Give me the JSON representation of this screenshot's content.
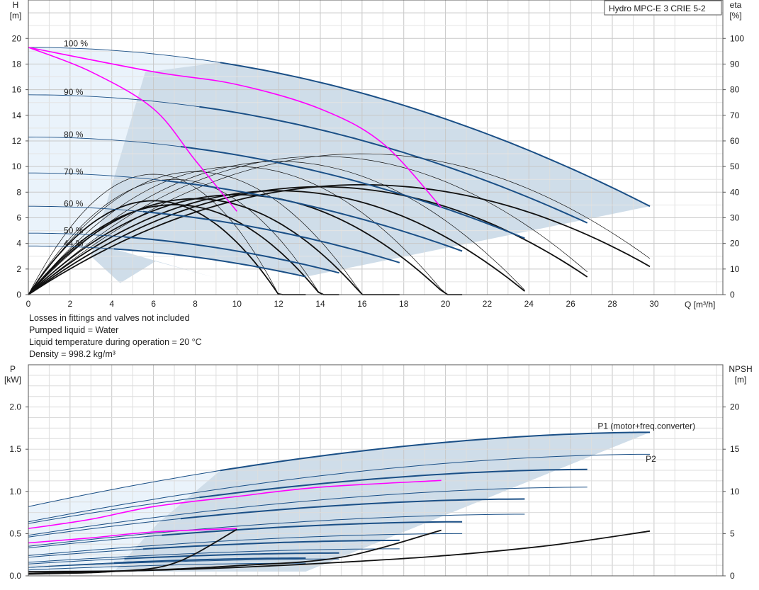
{
  "chart_data": [
    {
      "type": "line",
      "title": "Hydro MPC-E 3 CRIE 5-2",
      "xlabel": "Q [m³/h]",
      "ylabel_top": "H",
      "ylabel_unit": "[m]",
      "y2label_top": "eta",
      "y2label_unit": "[%]",
      "xlim": [
        0,
        33.3
      ],
      "ylim": [
        0,
        23
      ],
      "y2lim": [
        0,
        115
      ],
      "x_ticks": [
        0,
        2,
        4,
        6,
        8,
        10,
        12,
        14,
        16,
        18,
        20,
        22,
        24,
        26,
        28,
        30
      ],
      "y_ticks": [
        0,
        2,
        4,
        6,
        8,
        10,
        12,
        14,
        16,
        18,
        20
      ],
      "y2_ticks": [
        0,
        10,
        20,
        30,
        40,
        50,
        60,
        70,
        80,
        90,
        100
      ],
      "grid": true,
      "speed_labels": [
        {
          "text": "100 %",
          "q": 1.7,
          "h": 19.6
        },
        {
          "text": "90 %",
          "q": 1.7,
          "h": 15.8
        },
        {
          "text": "80 %",
          "q": 1.7,
          "h": 12.5
        },
        {
          "text": "70 %",
          "q": 1.7,
          "h": 9.6
        },
        {
          "text": "60 %",
          "q": 1.7,
          "h": 7.1
        },
        {
          "text": "50 %",
          "q": 1.7,
          "h": 5.0
        },
        {
          "text": "44 %",
          "q": 1.7,
          "h": 4.0
        }
      ],
      "series": [
        {
          "color": "#1a4f86",
          "h0": 19.3,
          "end_q": 29.8,
          "end_h": 6.9,
          "thin_to_q": 9.2
        },
        {
          "color": "#1a4f86",
          "h0": 15.6,
          "end_q": 26.8,
          "end_h": 5.6,
          "thin_to_q": 8.2
        },
        {
          "color": "#1a4f86",
          "h0": 12.3,
          "end_q": 23.8,
          "end_h": 4.4,
          "thin_to_q": 7.3
        },
        {
          "color": "#1a4f86",
          "h0": 9.5,
          "end_q": 20.8,
          "end_h": 3.4,
          "thin_to_q": 6.4
        },
        {
          "color": "#1a4f86",
          "h0": 6.9,
          "end_q": 17.8,
          "end_h": 2.5,
          "thin_to_q": 5.5
        },
        {
          "color": "#1a4f86",
          "h0": 4.8,
          "end_q": 14.9,
          "end_h": 1.7,
          "thin_to_q": 4.6
        },
        {
          "color": "#1a4f86",
          "h0": 3.8,
          "end_q": 13.3,
          "end_h": 1.4,
          "thin_to_q": 4.1
        }
      ],
      "magenta_curves": [
        {
          "color": "#ff00ff",
          "points": [
            [
              0,
              19.3
            ],
            [
              3,
              17.4
            ],
            [
              6,
              14.5
            ],
            [
              8,
              10.5
            ],
            [
              10,
              6.5
            ]
          ]
        },
        {
          "color": "#ff00ff",
          "points": [
            [
              0,
              19.3
            ],
            [
              6,
              17.4
            ],
            [
              10,
              16.4
            ],
            [
              14,
              14.5
            ],
            [
              17,
              11.8
            ],
            [
              19.8,
              6.8
            ]
          ]
        }
      ],
      "eta_curves": [
        {
          "peak_q": 6,
          "peak_eta": 47,
          "end_q": 13.3,
          "end_eta": 23
        },
        {
          "peak_q": 7,
          "peak_eta": 45,
          "end_q": 14.9,
          "end_eta": 25
        },
        {
          "peak_q": 8,
          "peak_eta": 48,
          "end_q": 17.8,
          "end_eta": 28
        },
        {
          "peak_q": 10,
          "peak_eta": 50,
          "end_q": 20.8,
          "end_eta": 30
        },
        {
          "peak_q": 12,
          "peak_eta": 52,
          "end_q": 23.8,
          "end_eta": 31
        },
        {
          "peak_q": 14,
          "peak_eta": 54,
          "end_q": 26.8,
          "end_eta": 32
        },
        {
          "peak_q": 16,
          "peak_eta": 55,
          "end_q": 29.8,
          "end_eta": 33
        }
      ],
      "notes": [
        "Losses in fittings and valves not included",
        "Pumped liquid = Water",
        "Liquid temperature during operation = 20 °C",
        "Density = 998.2 kg/m³"
      ]
    },
    {
      "type": "line",
      "ylabel_top": "P",
      "ylabel_unit": "[kW]",
      "y2label_top": "NPSH",
      "y2label_unit": "[m]",
      "xlim": [
        0,
        33.3
      ],
      "ylim": [
        0,
        2.5
      ],
      "y2lim": [
        0,
        25
      ],
      "y_ticks": [
        0.0,
        0.5,
        1.0,
        1.5,
        2.0
      ],
      "y_tick_labels": [
        "0.0",
        "0.5",
        "1.0",
        "1.5",
        "2.0"
      ],
      "y2_ticks": [
        0,
        5,
        10,
        15,
        20
      ],
      "grid": true,
      "series_labels": [
        {
          "text": "P1 (motor+freq.converter)",
          "color": "#1a4f86",
          "q": 27.3,
          "p": 1.74
        },
        {
          "text": "P2",
          "color": "#1a4f86",
          "q": 29.6,
          "p": 1.35
        }
      ],
      "p1_curves": [
        {
          "p0": 0.82,
          "end_q": 29.8,
          "end_p": 1.7
        },
        {
          "p0": 0.62,
          "end_q": 26.8,
          "end_p": 1.26
        },
        {
          "p0": 0.46,
          "end_q": 23.8,
          "end_p": 0.91
        },
        {
          "p0": 0.33,
          "end_q": 20.8,
          "end_p": 0.64
        },
        {
          "p0": 0.22,
          "end_q": 17.8,
          "end_p": 0.42
        },
        {
          "p0": 0.14,
          "end_q": 14.9,
          "end_p": 0.27
        },
        {
          "p0": 0.1,
          "end_q": 13.3,
          "end_p": 0.21
        }
      ],
      "p2_curves": [
        {
          "p0": 0.64,
          "end_q": 29.8,
          "end_p": 1.44
        },
        {
          "p0": 0.48,
          "end_q": 26.8,
          "end_p": 1.05
        },
        {
          "p0": 0.35,
          "end_q": 23.8,
          "end_p": 0.73
        },
        {
          "p0": 0.24,
          "end_q": 20.8,
          "end_p": 0.5
        },
        {
          "p0": 0.16,
          "end_q": 17.8,
          "end_p": 0.32
        },
        {
          "p0": 0.1,
          "end_q": 14.9,
          "end_p": 0.2
        },
        {
          "p0": 0.07,
          "end_q": 13.3,
          "end_p": 0.15
        }
      ],
      "npsh_curves": [
        {
          "points": [
            [
              0,
              0.5
            ],
            [
              5,
              0.6
            ],
            [
              10,
              1.0
            ],
            [
              15,
              1.6
            ],
            [
              20,
              2.4
            ],
            [
              25,
              3.6
            ],
            [
              29.8,
              5.3
            ]
          ]
        },
        {
          "points": [
            [
              0,
              0.3
            ],
            [
              5,
              0.6
            ],
            [
              10,
              1.2
            ],
            [
              15,
              2.2
            ],
            [
              19.8,
              5.4
            ]
          ]
        },
        {
          "points": [
            [
              0,
              0.2
            ],
            [
              4,
              0.5
            ],
            [
              7,
              1.5
            ],
            [
              10,
              5.5
            ]
          ]
        }
      ]
    }
  ]
}
